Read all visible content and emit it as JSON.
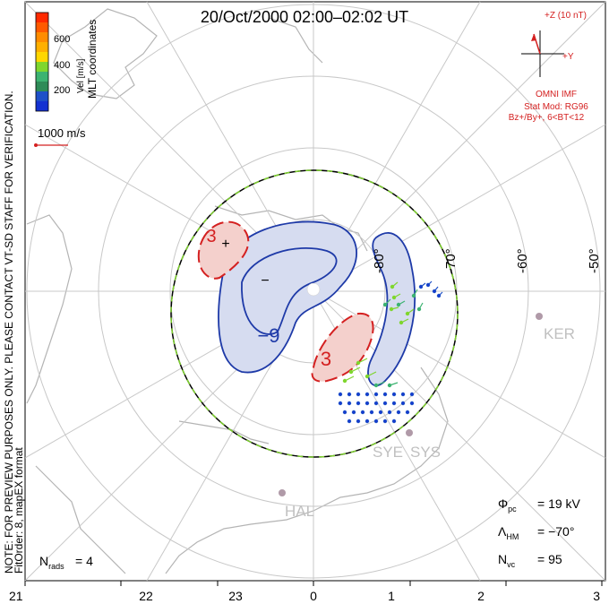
{
  "title": "20/Oct/2000 02:00–02:02 UT",
  "colorbar": {
    "ticks": [
      "600",
      "400",
      "200"
    ],
    "label": "Vel [m/s]",
    "colors": [
      "#ff2a00",
      "#ff8c00",
      "#ffd700",
      "#7fd62e",
      "#3cb371",
      "#2e8b57",
      "#1e50c8",
      "#1432d2"
    ]
  },
  "coord_label": "MLT coordinates",
  "scale_label": "1000 m/s",
  "side_note_1": "NOTE: FOR PREVIEW PURPOSES ONLY. PLEASE CONTACT VT-SD STAFF FOR VERIFICATION.",
  "side_note_2": "FitOrder: 8, mapEX format",
  "imf": {
    "z_label": "+Z (10 nT)",
    "y_label": "+Y",
    "source": "OMNI IMF",
    "model": "Stat Mod: RG96",
    "condition": "Bz+/By+, 6<BT<12"
  },
  "lat_labels": [
    "-80°",
    "-70°",
    "-60°",
    "-50°"
  ],
  "mlt_labels": [
    "21",
    "22",
    "23",
    "0",
    "1",
    "2",
    "3"
  ],
  "contours": {
    "neg_min": "−",
    "neg_value": "−9",
    "pos_value_1": "3",
    "pos_value_2": "3",
    "pos_max": "+"
  },
  "stations": [
    "KER",
    "SYE",
    "SYS",
    "HAL"
  ],
  "stats": {
    "phi_pc": "= 19 kV",
    "lambda_hm": "= −70°",
    "n_vc": "= 95",
    "n_rads": "= 4"
  },
  "colors": {
    "negative_contour": "#1e3aa8",
    "positive_contour": "#d42020",
    "negative_fill": "#d6dcf0",
    "positive_fill": "#f4d0cc",
    "grid": "#c8c8c8",
    "coast": "#b4b4b4",
    "station": "#b09aa8"
  }
}
